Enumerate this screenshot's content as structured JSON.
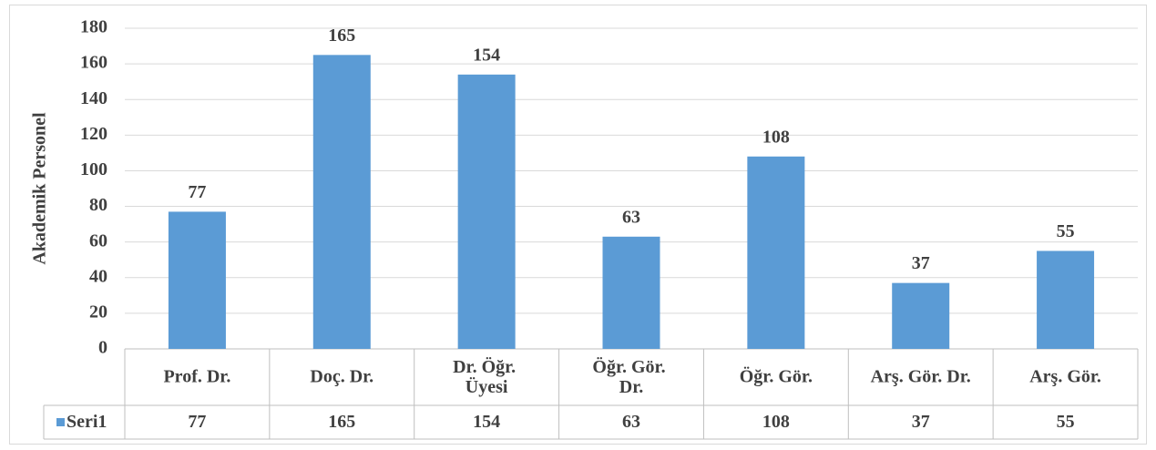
{
  "chart_data": {
    "type": "bar",
    "y_label": "Akademik Personel",
    "categories": [
      "Prof. Dr.",
      "Doç. Dr.",
      "Dr. Öğr. Üyesi",
      "Öğr. Gör. Dr.",
      "Öğr. Gör.",
      "Arş. Gör. Dr.",
      "Arş. Gör."
    ],
    "series": [
      {
        "name": "Seri1",
        "color": "#5b9bd5",
        "values": [
          77,
          165,
          154,
          63,
          108,
          37,
          55
        ]
      }
    ],
    "ylim": [
      0,
      180
    ],
    "yticks": [
      0,
      20,
      40,
      60,
      80,
      100,
      120,
      140,
      160,
      180
    ],
    "grid": true
  }
}
